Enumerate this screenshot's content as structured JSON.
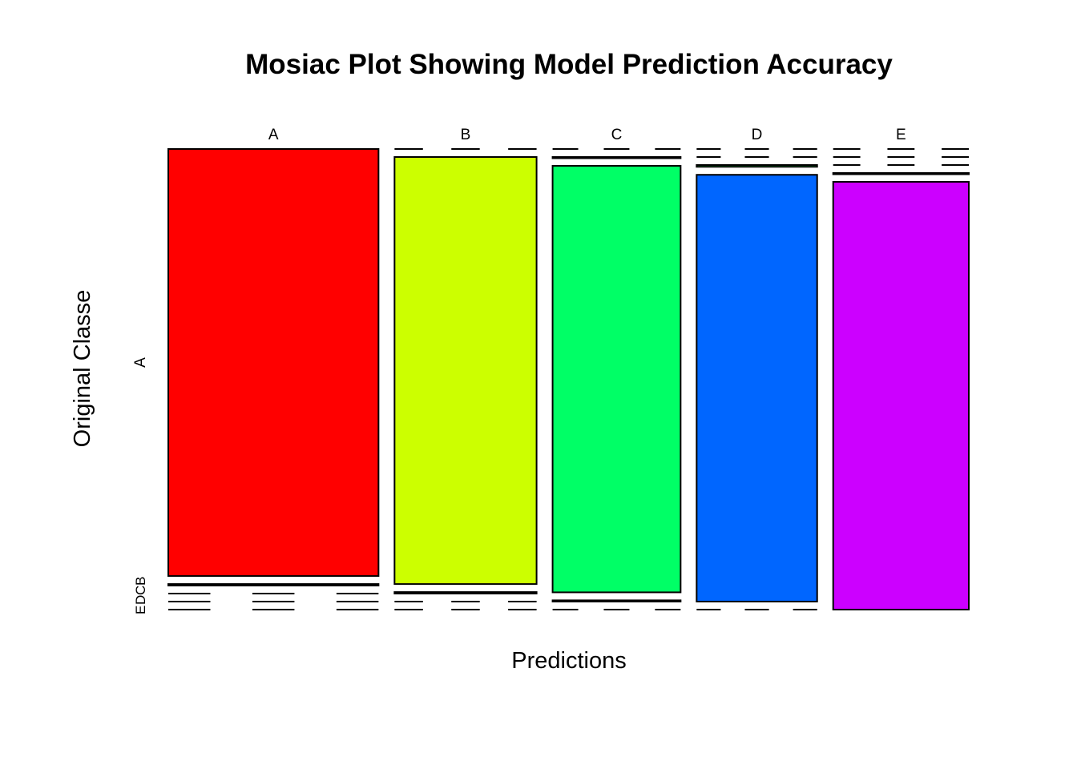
{
  "chart_data": {
    "type": "mosaic",
    "title": "Mosiac Plot Showing Model Prediction Accuracy",
    "xlabel": "Predictions",
    "ylabel": "Original Classe",
    "x_categories": [
      "A",
      "B",
      "C",
      "D",
      "E"
    ],
    "y_categories": [
      "A",
      "B",
      "C",
      "D",
      "E"
    ],
    "colors": {
      "A": "#ff0000",
      "B": "#ccff00",
      "C": "#00ff66",
      "D": "#0066ff",
      "E": "#cc00ff"
    },
    "column_totals": [
      1674,
      1139,
      1026,
      964,
      1082
    ],
    "counts": {
      "A": {
        "A": 1674,
        "B": 0,
        "C": 0,
        "D": 0,
        "E": 0
      },
      "B": {
        "A": 6,
        "B": 1131,
        "C": 2,
        "D": 0,
        "E": 0
      },
      "C": {
        "A": 0,
        "B": 4,
        "C": 1018,
        "D": 4,
        "E": 0
      },
      "D": {
        "A": 0,
        "B": 0,
        "C": 3,
        "D": 959,
        "E": 2
      },
      "E": {
        "A": 0,
        "B": 0,
        "C": 0,
        "D": 0,
        "E": 1082
      }
    }
  }
}
